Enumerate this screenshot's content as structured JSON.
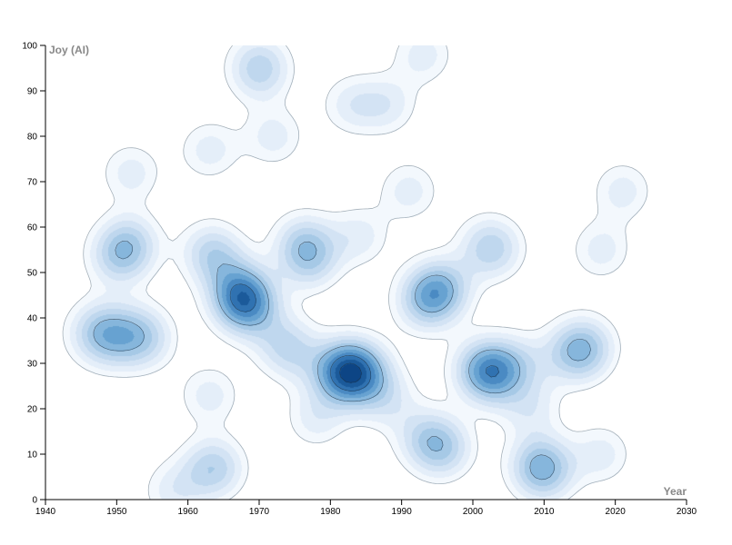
{
  "chart_data": {
    "type": "heatmap",
    "subtype": "density-contour",
    "title": "",
    "xlabel": "Year",
    "ylabel": "Joy (AI)",
    "xlim": [
      1940,
      2030
    ],
    "ylim": [
      0,
      100
    ],
    "xticks": [
      1940,
      1950,
      1960,
      1970,
      1980,
      1990,
      2000,
      2010,
      2020,
      2030
    ],
    "yticks": [
      0,
      10,
      20,
      30,
      40,
      50,
      60,
      70,
      80,
      90,
      100
    ],
    "grid": false,
    "legend": "none",
    "colors": {
      "low": "#f1f6fc",
      "high": "#08306b",
      "outline": "#555555"
    },
    "points": [
      {
        "x": 1947,
        "y": 36
      },
      {
        "x": 1948,
        "y": 38
      },
      {
        "x": 1950,
        "y": 35
      },
      {
        "x": 1953,
        "y": 37
      },
      {
        "x": 1954,
        "y": 35
      },
      {
        "x": 1951,
        "y": 55
      },
      {
        "x": 1950,
        "y": 53
      },
      {
        "x": 1952,
        "y": 57
      },
      {
        "x": 1952,
        "y": 72
      },
      {
        "x": 1963,
        "y": 55
      },
      {
        "x": 1964,
        "y": 53
      },
      {
        "x": 1967,
        "y": 44
      },
      {
        "x": 1968,
        "y": 43
      },
      {
        "x": 1969,
        "y": 42
      },
      {
        "x": 1968,
        "y": 45
      },
      {
        "x": 1967,
        "y": 47
      },
      {
        "x": 1970,
        "y": 96
      },
      {
        "x": 1970,
        "y": 94
      },
      {
        "x": 1963,
        "y": 77
      },
      {
        "x": 1972,
        "y": 80
      },
      {
        "x": 1977,
        "y": 55
      },
      {
        "x": 1976,
        "y": 57
      },
      {
        "x": 1977,
        "y": 52
      },
      {
        "x": 1981,
        "y": 28
      },
      {
        "x": 1982,
        "y": 29
      },
      {
        "x": 1983,
        "y": 28
      },
      {
        "x": 1984,
        "y": 29
      },
      {
        "x": 1982,
        "y": 27
      },
      {
        "x": 1985,
        "y": 27
      },
      {
        "x": 1975,
        "y": 32
      },
      {
        "x": 1973,
        "y": 35
      },
      {
        "x": 1995,
        "y": 46
      },
      {
        "x": 1994,
        "y": 45
      },
      {
        "x": 1996,
        "y": 47
      },
      {
        "x": 1993,
        "y": 43
      },
      {
        "x": 1995,
        "y": 12
      },
      {
        "x": 1996,
        "y": 11
      },
      {
        "x": 1993,
        "y": 14
      },
      {
        "x": 2002,
        "y": 28
      },
      {
        "x": 2003,
        "y": 27
      },
      {
        "x": 2001,
        "y": 29
      },
      {
        "x": 2003,
        "y": 29
      },
      {
        "x": 2002,
        "y": 56
      },
      {
        "x": 2003,
        "y": 55
      },
      {
        "x": 2010,
        "y": 6
      },
      {
        "x": 2010,
        "y": 7
      },
      {
        "x": 2009,
        "y": 8
      },
      {
        "x": 2015,
        "y": 33
      },
      {
        "x": 2016,
        "y": 34
      },
      {
        "x": 2014,
        "y": 32
      },
      {
        "x": 2021,
        "y": 68
      },
      {
        "x": 2018,
        "y": 55
      },
      {
        "x": 1963,
        "y": 7
      },
      {
        "x": 1958,
        "y": 2
      },
      {
        "x": 1964,
        "y": 7
      },
      {
        "x": 1963,
        "y": 23
      },
      {
        "x": 1983,
        "y": 87
      },
      {
        "x": 1988,
        "y": 87
      },
      {
        "x": 1993,
        "y": 98
      },
      {
        "x": 1991,
        "y": 68
      },
      {
        "x": 1984,
        "y": 58
      },
      {
        "x": 2007,
        "y": 30
      },
      {
        "x": 2008,
        "y": 20
      },
      {
        "x": 2018,
        "y": 10
      },
      {
        "x": 1978,
        "y": 18
      },
      {
        "x": 1988,
        "y": 22
      }
    ]
  }
}
